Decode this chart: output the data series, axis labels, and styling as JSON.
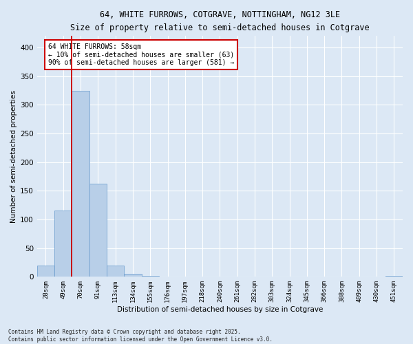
{
  "title_line1": "64, WHITE FURROWS, COTGRAVE, NOTTINGHAM, NG12 3LE",
  "title_line2": "Size of property relative to semi-detached houses in Cotgrave",
  "xlabel": "Distribution of semi-detached houses by size in Cotgrave",
  "ylabel": "Number of semi-detached properties",
  "categories": [
    "28sqm",
    "49sqm",
    "70sqm",
    "91sqm",
    "113sqm",
    "134sqm",
    "155sqm",
    "176sqm",
    "197sqm",
    "218sqm",
    "240sqm",
    "261sqm",
    "282sqm",
    "303sqm",
    "324sqm",
    "345sqm",
    "366sqm",
    "388sqm",
    "409sqm",
    "430sqm",
    "451sqm"
  ],
  "values": [
    20,
    116,
    325,
    162,
    20,
    5,
    2,
    0,
    0,
    0,
    0,
    0,
    0,
    0,
    0,
    0,
    0,
    0,
    0,
    0,
    2
  ],
  "bar_color": "#b8cfe8",
  "bar_edge_color": "#6699cc",
  "background_color": "#dce8f5",
  "grid_color": "#ffffff",
  "vline_color": "#cc0000",
  "vline_x_index": 1.5,
  "annotation_title": "64 WHITE FURROWS: 58sqm",
  "annotation_line1": "← 10% of semi-detached houses are smaller (63)",
  "annotation_line2": "90% of semi-detached houses are larger (581) →",
  "annotation_box_color": "#ffffff",
  "annotation_box_edge": "#cc0000",
  "footnote1": "Contains HM Land Registry data © Crown copyright and database right 2025.",
  "footnote2": "Contains public sector information licensed under the Open Government Licence v3.0.",
  "ylim": [
    0,
    420
  ],
  "yticks": [
    0,
    50,
    100,
    150,
    200,
    250,
    300,
    350,
    400
  ]
}
